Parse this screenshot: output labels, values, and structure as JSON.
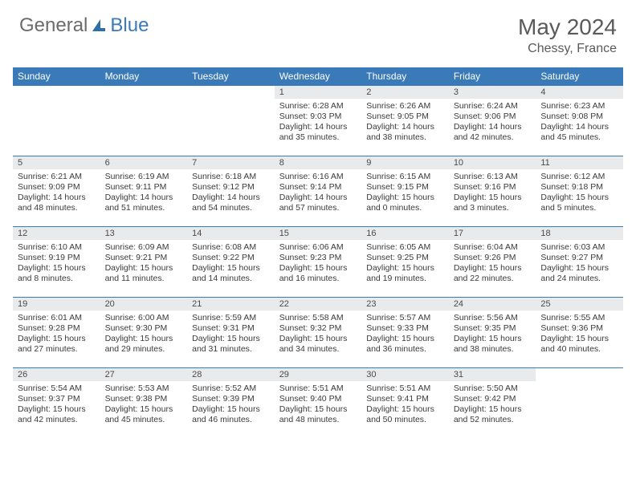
{
  "brand": {
    "part1": "General",
    "part2": "Blue"
  },
  "title": "May 2024",
  "location": "Chessy, France",
  "colors": {
    "header_bg": "#3a7ab8",
    "daynum_bg": "#e8eaec",
    "text": "#3a3a3a",
    "title_text": "#5a5a5a"
  },
  "weekdays": [
    "Sunday",
    "Monday",
    "Tuesday",
    "Wednesday",
    "Thursday",
    "Friday",
    "Saturday"
  ],
  "weeks": [
    [
      null,
      null,
      null,
      {
        "n": "1",
        "sr": "6:28 AM",
        "ss": "9:03 PM",
        "dl1": "14 hours",
        "dl2": "and 35 minutes."
      },
      {
        "n": "2",
        "sr": "6:26 AM",
        "ss": "9:05 PM",
        "dl1": "14 hours",
        "dl2": "and 38 minutes."
      },
      {
        "n": "3",
        "sr": "6:24 AM",
        "ss": "9:06 PM",
        "dl1": "14 hours",
        "dl2": "and 42 minutes."
      },
      {
        "n": "4",
        "sr": "6:23 AM",
        "ss": "9:08 PM",
        "dl1": "14 hours",
        "dl2": "and 45 minutes."
      }
    ],
    [
      {
        "n": "5",
        "sr": "6:21 AM",
        "ss": "9:09 PM",
        "dl1": "14 hours",
        "dl2": "and 48 minutes."
      },
      {
        "n": "6",
        "sr": "6:19 AM",
        "ss": "9:11 PM",
        "dl1": "14 hours",
        "dl2": "and 51 minutes."
      },
      {
        "n": "7",
        "sr": "6:18 AM",
        "ss": "9:12 PM",
        "dl1": "14 hours",
        "dl2": "and 54 minutes."
      },
      {
        "n": "8",
        "sr": "6:16 AM",
        "ss": "9:14 PM",
        "dl1": "14 hours",
        "dl2": "and 57 minutes."
      },
      {
        "n": "9",
        "sr": "6:15 AM",
        "ss": "9:15 PM",
        "dl1": "15 hours",
        "dl2": "and 0 minutes."
      },
      {
        "n": "10",
        "sr": "6:13 AM",
        "ss": "9:16 PM",
        "dl1": "15 hours",
        "dl2": "and 3 minutes."
      },
      {
        "n": "11",
        "sr": "6:12 AM",
        "ss": "9:18 PM",
        "dl1": "15 hours",
        "dl2": "and 5 minutes."
      }
    ],
    [
      {
        "n": "12",
        "sr": "6:10 AM",
        "ss": "9:19 PM",
        "dl1": "15 hours",
        "dl2": "and 8 minutes."
      },
      {
        "n": "13",
        "sr": "6:09 AM",
        "ss": "9:21 PM",
        "dl1": "15 hours",
        "dl2": "and 11 minutes."
      },
      {
        "n": "14",
        "sr": "6:08 AM",
        "ss": "9:22 PM",
        "dl1": "15 hours",
        "dl2": "and 14 minutes."
      },
      {
        "n": "15",
        "sr": "6:06 AM",
        "ss": "9:23 PM",
        "dl1": "15 hours",
        "dl2": "and 16 minutes."
      },
      {
        "n": "16",
        "sr": "6:05 AM",
        "ss": "9:25 PM",
        "dl1": "15 hours",
        "dl2": "and 19 minutes."
      },
      {
        "n": "17",
        "sr": "6:04 AM",
        "ss": "9:26 PM",
        "dl1": "15 hours",
        "dl2": "and 22 minutes."
      },
      {
        "n": "18",
        "sr": "6:03 AM",
        "ss": "9:27 PM",
        "dl1": "15 hours",
        "dl2": "and 24 minutes."
      }
    ],
    [
      {
        "n": "19",
        "sr": "6:01 AM",
        "ss": "9:28 PM",
        "dl1": "15 hours",
        "dl2": "and 27 minutes."
      },
      {
        "n": "20",
        "sr": "6:00 AM",
        "ss": "9:30 PM",
        "dl1": "15 hours",
        "dl2": "and 29 minutes."
      },
      {
        "n": "21",
        "sr": "5:59 AM",
        "ss": "9:31 PM",
        "dl1": "15 hours",
        "dl2": "and 31 minutes."
      },
      {
        "n": "22",
        "sr": "5:58 AM",
        "ss": "9:32 PM",
        "dl1": "15 hours",
        "dl2": "and 34 minutes."
      },
      {
        "n": "23",
        "sr": "5:57 AM",
        "ss": "9:33 PM",
        "dl1": "15 hours",
        "dl2": "and 36 minutes."
      },
      {
        "n": "24",
        "sr": "5:56 AM",
        "ss": "9:35 PM",
        "dl1": "15 hours",
        "dl2": "and 38 minutes."
      },
      {
        "n": "25",
        "sr": "5:55 AM",
        "ss": "9:36 PM",
        "dl1": "15 hours",
        "dl2": "and 40 minutes."
      }
    ],
    [
      {
        "n": "26",
        "sr": "5:54 AM",
        "ss": "9:37 PM",
        "dl1": "15 hours",
        "dl2": "and 42 minutes."
      },
      {
        "n": "27",
        "sr": "5:53 AM",
        "ss": "9:38 PM",
        "dl1": "15 hours",
        "dl2": "and 45 minutes."
      },
      {
        "n": "28",
        "sr": "5:52 AM",
        "ss": "9:39 PM",
        "dl1": "15 hours",
        "dl2": "and 46 minutes."
      },
      {
        "n": "29",
        "sr": "5:51 AM",
        "ss": "9:40 PM",
        "dl1": "15 hours",
        "dl2": "and 48 minutes."
      },
      {
        "n": "30",
        "sr": "5:51 AM",
        "ss": "9:41 PM",
        "dl1": "15 hours",
        "dl2": "and 50 minutes."
      },
      {
        "n": "31",
        "sr": "5:50 AM",
        "ss": "9:42 PM",
        "dl1": "15 hours",
        "dl2": "and 52 minutes."
      },
      null
    ]
  ],
  "labels": {
    "sunrise": "Sunrise:",
    "sunset": "Sunset:",
    "daylight": "Daylight:"
  }
}
